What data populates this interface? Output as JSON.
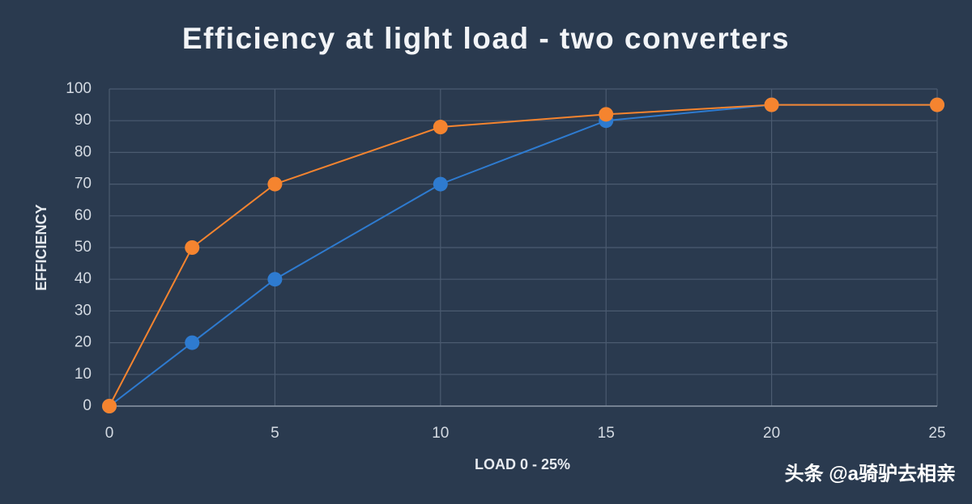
{
  "chart_data": {
    "type": "line",
    "title": "Efficiency at light load - two converters",
    "x_label": "LOAD 0 - 25%",
    "y_label": "EFFICIENCY",
    "x": [
      0,
      2.5,
      5,
      10,
      15,
      20,
      25
    ],
    "series": [
      {
        "color": "#2e7bd0",
        "values": [
          0,
          20,
          40,
          70,
          90,
          95,
          95
        ]
      },
      {
        "color": "#f5842f",
        "values": [
          0,
          50,
          70,
          88,
          92,
          95,
          95
        ]
      }
    ],
    "xlim": [
      0,
      25
    ],
    "xticks": [
      0,
      5,
      10,
      15,
      20,
      25
    ],
    "ylim": [
      0,
      100
    ],
    "yticks": [
      0,
      10,
      20,
      30,
      40,
      50,
      60,
      70,
      80,
      90,
      100
    ],
    "grid": true,
    "watermark": "头条 @a骑驴去相亲"
  }
}
